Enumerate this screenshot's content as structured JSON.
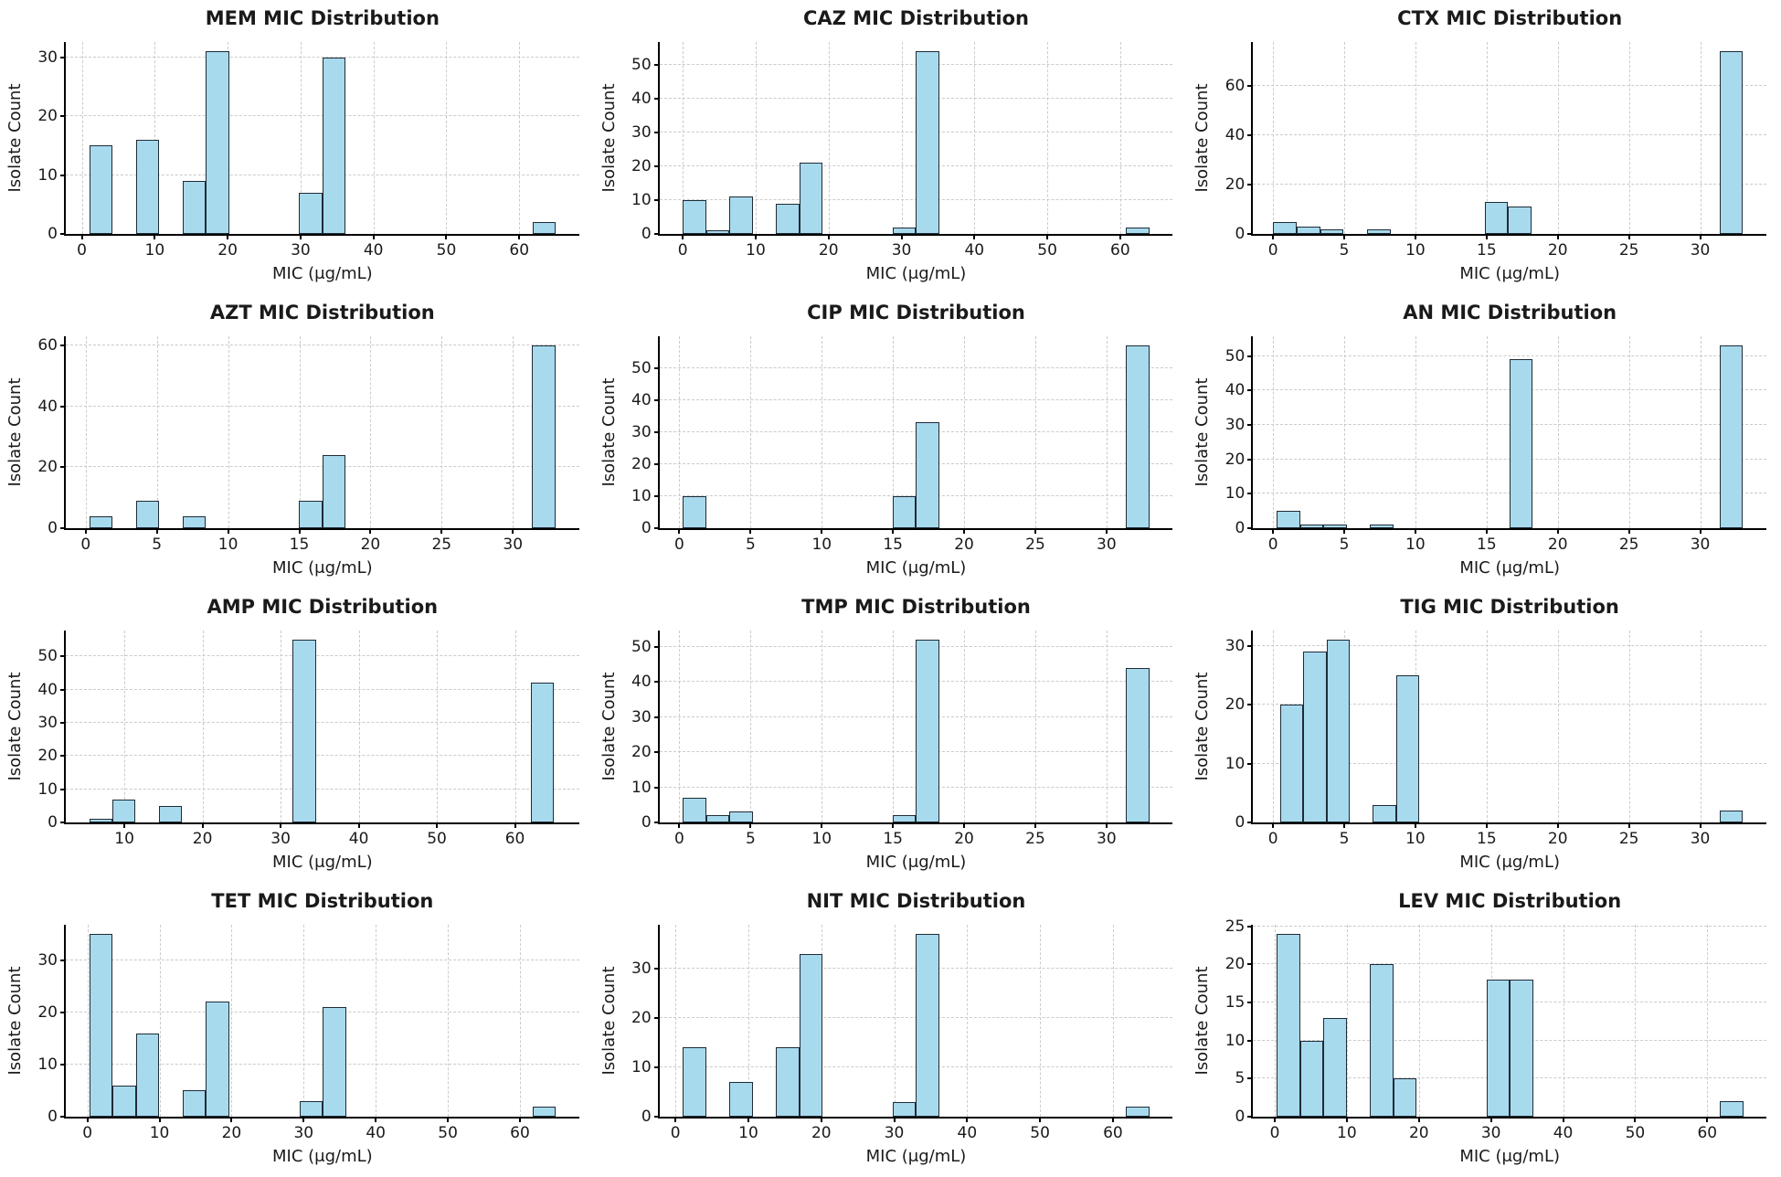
{
  "figure": {
    "kind": "histogram-grid",
    "rows": 4,
    "cols": 3,
    "background": "#ffffff"
  },
  "styles": {
    "bar_fill": "#A8DAEE",
    "bar_edge": "#1f2b36",
    "grid_color": "#cbcbcb",
    "axis_color": "#000000",
    "text_color": "#1a1a1a"
  },
  "chart_data": [
    {
      "key": "mem",
      "type": "bar",
      "title": "MEM MIC Distribution",
      "xlabel": "MIC (μg/mL)",
      "ylabel": "Isolate Count",
      "xlim": [
        -2.2,
        68.2
      ],
      "ylim": [
        0,
        32.6
      ],
      "xticks": [
        0,
        10,
        20,
        30,
        40,
        50,
        60
      ],
      "yticks": [
        0,
        10,
        20,
        30
      ],
      "bars": [
        [
          1,
          4.2,
          15
        ],
        [
          7.4,
          10.6,
          16
        ],
        [
          13.8,
          17,
          9
        ],
        [
          17,
          20.2,
          31
        ],
        [
          29.8,
          33,
          7
        ],
        [
          33,
          36.2,
          30
        ],
        [
          61.8,
          65,
          2
        ]
      ]
    },
    {
      "key": "caz",
      "type": "bar",
      "title": "CAZ MIC Distribution",
      "xlabel": "MIC (μg/mL)",
      "ylabel": "Isolate Count",
      "xlim": [
        -3.2,
        67.2
      ],
      "ylim": [
        0,
        56.7
      ],
      "xticks": [
        0,
        10,
        20,
        30,
        40,
        50,
        60
      ],
      "yticks": [
        0,
        10,
        20,
        30,
        40,
        50
      ],
      "bars": [
        [
          0,
          3.2,
          10
        ],
        [
          3.2,
          6.4,
          1
        ],
        [
          6.4,
          9.6,
          11
        ],
        [
          12.8,
          16,
          9
        ],
        [
          16,
          19.2,
          21
        ],
        [
          28.8,
          32,
          2
        ],
        [
          32,
          35.2,
          54
        ],
        [
          60.8,
          64,
          2
        ]
      ]
    },
    {
      "key": "ctx",
      "type": "bar",
      "title": "CTX MIC Distribution",
      "xlabel": "MIC (μg/mL)",
      "ylabel": "Isolate Count",
      "xlim": [
        -1.4,
        34.65
      ],
      "ylim": [
        0,
        77.7
      ],
      "xticks": [
        0,
        5,
        10,
        15,
        20,
        25,
        30
      ],
      "yticks": [
        0,
        20,
        40,
        60
      ],
      "bars": [
        [
          0,
          1.65,
          5
        ],
        [
          1.65,
          3.3,
          3
        ],
        [
          3.3,
          4.95,
          2
        ],
        [
          6.6,
          8.25,
          2
        ],
        [
          14.85,
          16.5,
          13
        ],
        [
          16.5,
          18.15,
          11
        ],
        [
          31.35,
          33,
          74
        ]
      ]
    },
    {
      "key": "azt",
      "type": "bar",
      "title": "AZT MIC Distribution",
      "xlabel": "MIC (μg/mL)",
      "ylabel": "Isolate Count",
      "xlim": [
        -1.4,
        34.65
      ],
      "ylim": [
        0,
        63
      ],
      "xticks": [
        0,
        5,
        10,
        15,
        20,
        25,
        30
      ],
      "yticks": [
        0,
        20,
        40,
        60
      ],
      "bars": [
        [
          0.25,
          1.89,
          4
        ],
        [
          3.52,
          5.16,
          9
        ],
        [
          6.8,
          8.44,
          4
        ],
        [
          14.98,
          16.61,
          9
        ],
        [
          16.61,
          18.25,
          24
        ],
        [
          31.36,
          33,
          60
        ]
      ]
    },
    {
      "key": "cip",
      "type": "bar",
      "title": "CIP MIC Distribution",
      "xlabel": "MIC (μg/mL)",
      "ylabel": "Isolate Count",
      "xlim": [
        -1.4,
        34.65
      ],
      "ylim": [
        0,
        59.9
      ],
      "xticks": [
        0,
        5,
        10,
        15,
        20,
        25,
        30
      ],
      "yticks": [
        0,
        10,
        20,
        30,
        40,
        50
      ],
      "bars": [
        [
          0.25,
          1.89,
          10
        ],
        [
          14.98,
          16.61,
          10
        ],
        [
          16.61,
          18.25,
          33
        ],
        [
          31.36,
          33,
          57
        ]
      ]
    },
    {
      "key": "an",
      "type": "bar",
      "title": "AN MIC Distribution",
      "xlabel": "MIC (μg/mL)",
      "ylabel": "Isolate Count",
      "xlim": [
        -1.4,
        34.65
      ],
      "ylim": [
        0,
        55.7
      ],
      "xticks": [
        0,
        5,
        10,
        15,
        20,
        25,
        30
      ],
      "yticks": [
        0,
        10,
        20,
        30,
        40,
        50
      ],
      "bars": [
        [
          0.25,
          1.89,
          5
        ],
        [
          1.89,
          3.52,
          1
        ],
        [
          3.52,
          5.16,
          1
        ],
        [
          6.8,
          8.44,
          1
        ],
        [
          16.61,
          18.25,
          49
        ],
        [
          31.36,
          33,
          53
        ]
      ]
    },
    {
      "key": "amp",
      "type": "bar",
      "title": "AMP MIC Distribution",
      "xlabel": "MIC (μg/mL)",
      "ylabel": "Isolate Count",
      "xlim": [
        2.5,
        68.2
      ],
      "ylim": [
        0,
        57.8
      ],
      "xticks": [
        10,
        20,
        30,
        40,
        50,
        60
      ],
      "yticks": [
        0,
        10,
        20,
        30,
        40,
        50
      ],
      "bars": [
        [
          5.5,
          8.48,
          1
        ],
        [
          8.48,
          11.45,
          7
        ],
        [
          14.43,
          17.4,
          5
        ],
        [
          31.5,
          34.5,
          55
        ],
        [
          62,
          65,
          42
        ]
      ]
    },
    {
      "key": "tmp",
      "type": "bar",
      "title": "TMP MIC Distribution",
      "xlabel": "MIC (μg/mL)",
      "ylabel": "Isolate Count",
      "xlim": [
        -1.4,
        34.65
      ],
      "ylim": [
        0,
        54.6
      ],
      "xticks": [
        0,
        5,
        10,
        15,
        20,
        25,
        30
      ],
      "yticks": [
        0,
        10,
        20,
        30,
        40,
        50
      ],
      "bars": [
        [
          0.25,
          1.89,
          7
        ],
        [
          1.89,
          3.52,
          2
        ],
        [
          3.52,
          5.16,
          3
        ],
        [
          14.98,
          16.61,
          2
        ],
        [
          16.61,
          18.25,
          52
        ],
        [
          31.36,
          33,
          44
        ]
      ]
    },
    {
      "key": "tig",
      "type": "bar",
      "title": "TIG MIC Distribution",
      "xlabel": "MIC (μg/mL)",
      "ylabel": "Isolate Count",
      "xlim": [
        -1.4,
        34.65
      ],
      "ylim": [
        0,
        32.6
      ],
      "xticks": [
        0,
        5,
        10,
        15,
        20,
        25,
        30
      ],
      "yticks": [
        0,
        10,
        20,
        30
      ],
      "bars": [
        [
          0.5,
          2.13,
          20
        ],
        [
          2.13,
          3.75,
          29
        ],
        [
          3.75,
          5.38,
          31
        ],
        [
          7,
          8.63,
          3
        ],
        [
          8.63,
          10.25,
          25
        ],
        [
          31.38,
          33,
          2
        ]
      ]
    },
    {
      "key": "tet",
      "type": "bar",
      "title": "TET MIC Distribution",
      "xlabel": "MIC (μg/mL)",
      "ylabel": "Isolate Count",
      "xlim": [
        -3,
        68.2
      ],
      "ylim": [
        0,
        36.8
      ],
      "xticks": [
        0,
        10,
        20,
        30,
        40,
        50,
        60
      ],
      "yticks": [
        0,
        10,
        20,
        30
      ],
      "bars": [
        [
          0.25,
          3.49,
          35
        ],
        [
          3.49,
          6.73,
          6
        ],
        [
          6.73,
          9.96,
          16
        ],
        [
          13.2,
          16.44,
          5
        ],
        [
          16.44,
          19.68,
          22
        ],
        [
          29.39,
          32.63,
          3
        ],
        [
          32.63,
          35.86,
          21
        ],
        [
          61.76,
          65,
          2
        ]
      ]
    },
    {
      "key": "nit",
      "type": "bar",
      "title": "NIT MIC Distribution",
      "xlabel": "MIC (μg/mL)",
      "ylabel": "Isolate Count",
      "xlim": [
        -2.2,
        68.2
      ],
      "ylim": [
        0,
        38.9
      ],
      "xticks": [
        0,
        10,
        20,
        30,
        40,
        50,
        60
      ],
      "yticks": [
        0,
        10,
        20,
        30
      ],
      "bars": [
        [
          1,
          4.2,
          14
        ],
        [
          7.4,
          10.6,
          7
        ],
        [
          13.8,
          17,
          14
        ],
        [
          17,
          20.2,
          33
        ],
        [
          29.8,
          33,
          3
        ],
        [
          33,
          36.2,
          37
        ],
        [
          61.8,
          65,
          2
        ]
      ]
    },
    {
      "key": "lev",
      "type": "bar",
      "title": "LEV MIC Distribution",
      "xlabel": "MIC (μg/mL)",
      "ylabel": "Isolate Count",
      "xlim": [
        -3,
        68.2
      ],
      "ylim": [
        0,
        25.2
      ],
      "xticks": [
        0,
        10,
        20,
        30,
        40,
        50,
        60
      ],
      "yticks": [
        0,
        5,
        10,
        15,
        20,
        25
      ],
      "bars": [
        [
          0.25,
          3.49,
          24
        ],
        [
          3.49,
          6.73,
          10
        ],
        [
          6.73,
          9.96,
          13
        ],
        [
          13.2,
          16.44,
          20
        ],
        [
          16.44,
          19.68,
          5
        ],
        [
          29.39,
          32.63,
          18
        ],
        [
          32.63,
          35.86,
          18
        ],
        [
          61.76,
          65,
          2
        ]
      ]
    }
  ]
}
